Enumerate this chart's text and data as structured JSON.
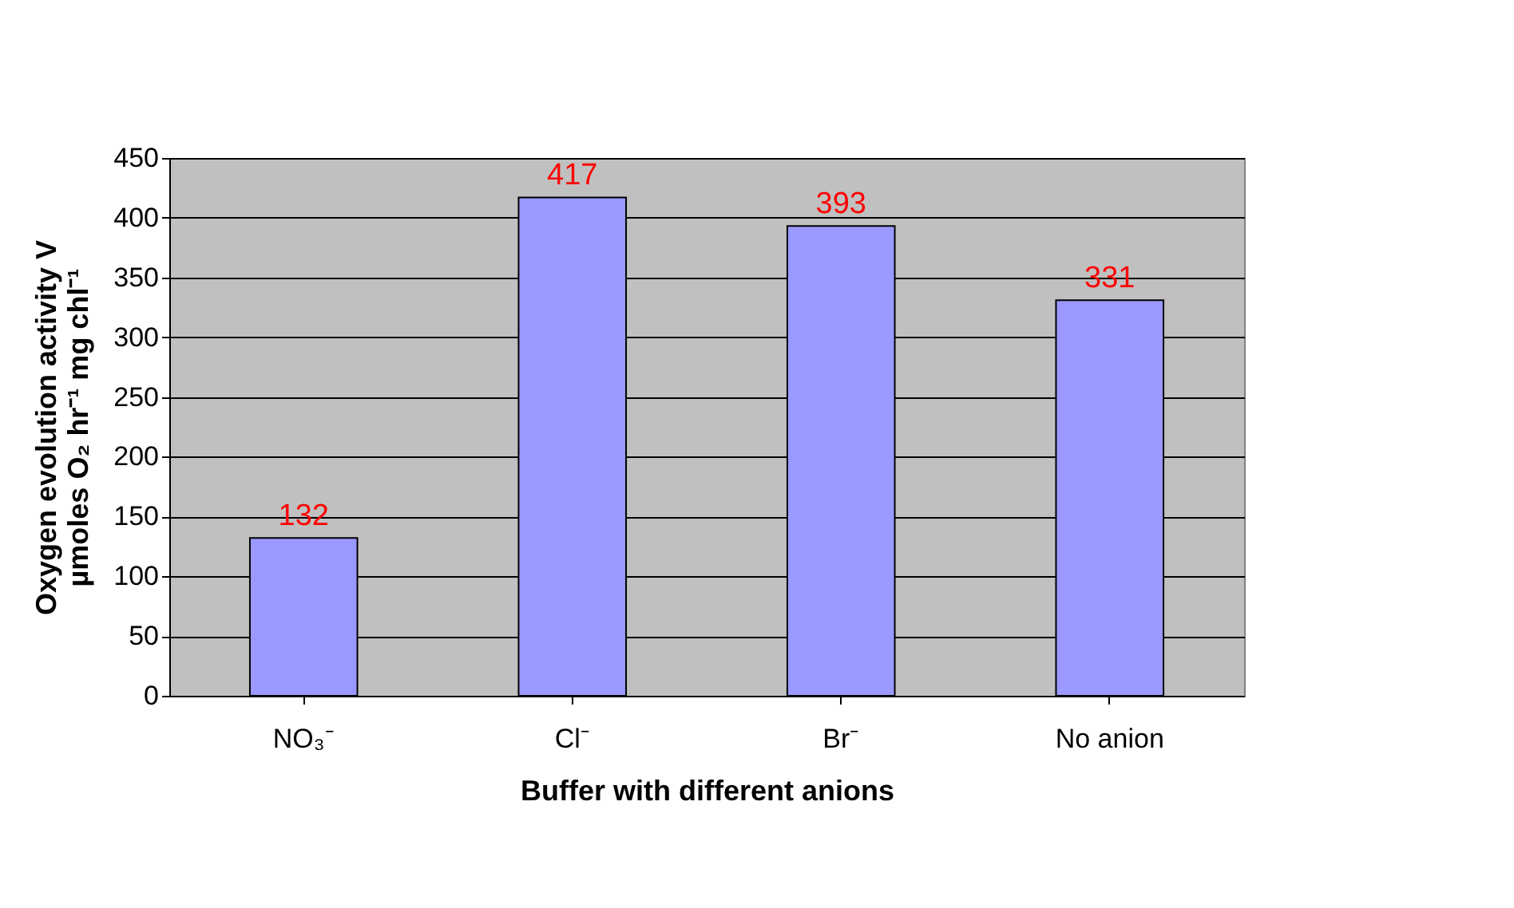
{
  "chart_data": {
    "type": "bar",
    "categories": [
      "NO₃⁻",
      "Cl⁻",
      "Br⁻",
      "No anion"
    ],
    "values": [
      132,
      417,
      393,
      331
    ],
    "color": "#9999ff",
    "xlabel": "Buffer with different anions",
    "ylabel": "Oxygen evolution activity    V\nµmoles O₂ hr⁻¹ mg chl⁻¹",
    "ylim": [
      0,
      450
    ],
    "yticks": [
      0,
      50,
      100,
      150,
      200,
      250,
      300,
      350,
      400,
      450
    ],
    "grid": "y",
    "data_labels": true
  }
}
